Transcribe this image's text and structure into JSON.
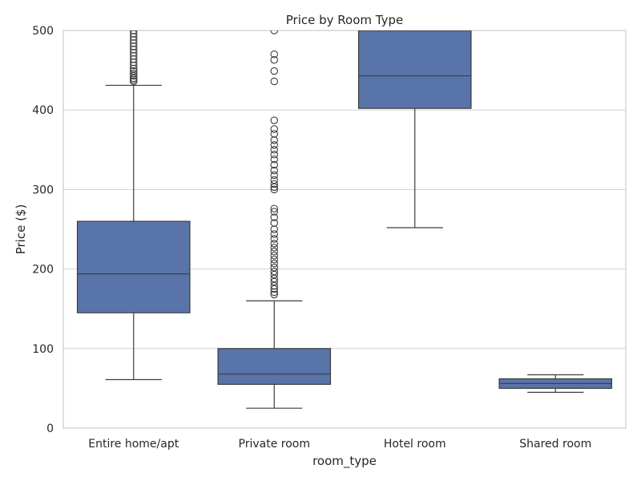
{
  "chart_data": {
    "type": "box",
    "title": "Price by Room Type",
    "xlabel": "room_type",
    "ylabel": "Price ($)",
    "ylim": [
      0,
      500
    ],
    "yticks": [
      0,
      100,
      200,
      300,
      400,
      500
    ],
    "grid": true,
    "colors": {
      "box": "#5874a8",
      "line": "#3d3d3d",
      "grid": "#d0d0d0",
      "frame": "#cccccc"
    },
    "categories": [
      "Entire home/apt",
      "Private room",
      "Hotel room",
      "Shared room"
    ],
    "boxes": [
      {
        "category": "Entire home/apt",
        "whisker_low": 61,
        "q1": 145,
        "median": 194,
        "q3": 260,
        "whisker_high": 431,
        "outliers": [
          436,
          438,
          440,
          443,
          446,
          449,
          452,
          456,
          460,
          464,
          468,
          472,
          476,
          480,
          484,
          488,
          492,
          496,
          500
        ]
      },
      {
        "category": "Private room",
        "whisker_low": 25,
        "q1": 55,
        "median": 68,
        "q3": 100,
        "whisker_high": 160,
        "outliers": [
          168,
          171,
          175,
          179,
          184,
          188,
          193,
          197,
          202,
          207,
          212,
          217,
          222,
          227,
          232,
          238,
          244,
          250,
          258,
          265,
          272,
          276,
          300,
          303,
          307,
          312,
          318,
          324,
          331,
          338,
          344,
          350,
          356,
          362,
          370,
          376,
          387,
          436,
          449,
          463,
          470,
          500
        ]
      },
      {
        "category": "Hotel room",
        "whisker_low": 252,
        "q1": 402,
        "median": 443,
        "q3": 500,
        "whisker_high": 500,
        "outliers": []
      },
      {
        "category": "Shared room",
        "whisker_low": 45,
        "q1": 50,
        "median": 56,
        "q3": 62,
        "whisker_high": 67,
        "outliers": []
      }
    ]
  }
}
